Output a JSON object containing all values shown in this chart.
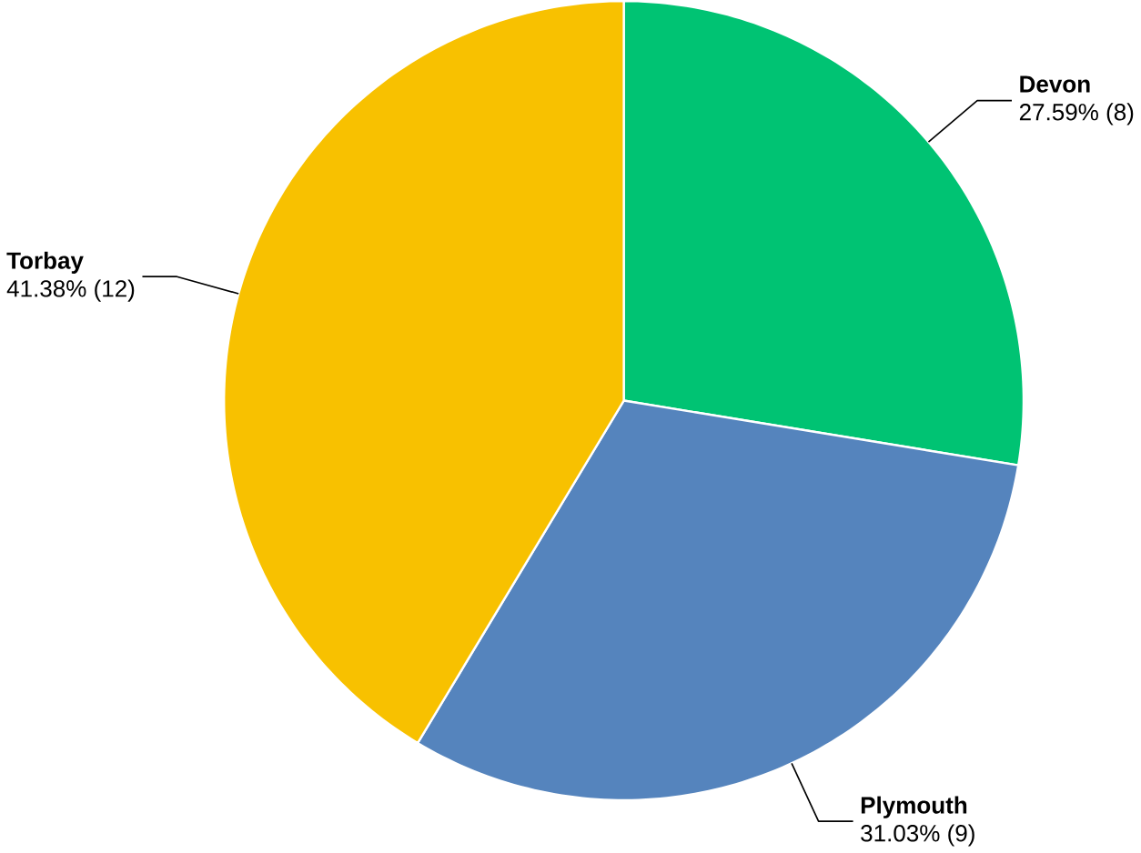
{
  "chart_data": {
    "type": "pie",
    "categories": [
      "Devon",
      "Plymouth",
      "Torbay"
    ],
    "values": [
      8,
      9,
      12
    ],
    "value_labels": [
      "27.59% (8)",
      "31.03% (9)",
      "41.38% (12)"
    ],
    "colors": [
      "#00c373",
      "#5584bd",
      "#f8c100"
    ]
  }
}
